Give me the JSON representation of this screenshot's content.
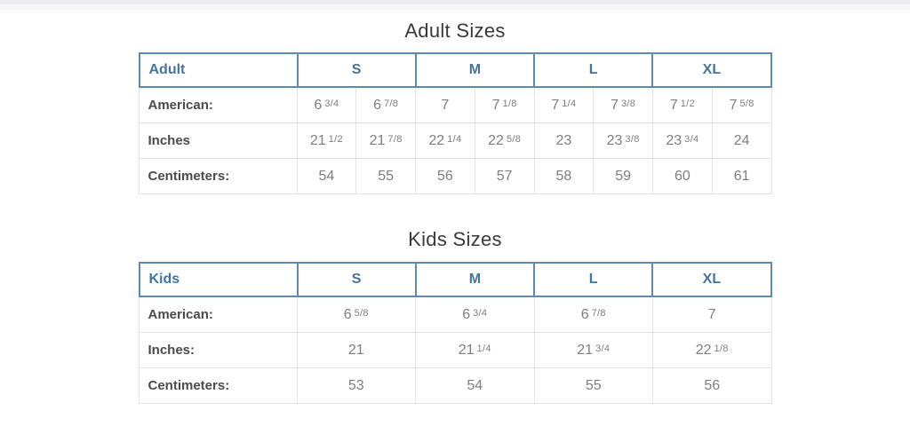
{
  "adult": {
    "title": "Adult Sizes",
    "header": {
      "label": "Adult",
      "cols": [
        "S",
        "M",
        "L",
        "XL"
      ]
    },
    "rows": [
      {
        "label": "American:",
        "cells": [
          {
            "n": "6",
            "f": "3/4"
          },
          {
            "n": "6",
            "f": "7/8"
          },
          {
            "n": "7",
            "f": ""
          },
          {
            "n": "7",
            "f": "1/8"
          },
          {
            "n": "7",
            "f": "1/4"
          },
          {
            "n": "7",
            "f": "3/8"
          },
          {
            "n": "7",
            "f": "1/2"
          },
          {
            "n": "7",
            "f": "5/8"
          }
        ]
      },
      {
        "label": "Inches",
        "cells": [
          {
            "n": "21",
            "f": "1/2"
          },
          {
            "n": "21",
            "f": "7/8"
          },
          {
            "n": "22",
            "f": "1/4"
          },
          {
            "n": "22",
            "f": "5/8"
          },
          {
            "n": "23",
            "f": ""
          },
          {
            "n": "23",
            "f": "3/8"
          },
          {
            "n": "23",
            "f": "3/4"
          },
          {
            "n": "24",
            "f": ""
          }
        ]
      },
      {
        "label": "Centimeters:",
        "cells": [
          {
            "n": "54",
            "f": ""
          },
          {
            "n": "55",
            "f": ""
          },
          {
            "n": "56",
            "f": ""
          },
          {
            "n": "57",
            "f": ""
          },
          {
            "n": "58",
            "f": ""
          },
          {
            "n": "59",
            "f": ""
          },
          {
            "n": "60",
            "f": ""
          },
          {
            "n": "61",
            "f": ""
          }
        ]
      }
    ]
  },
  "kids": {
    "title": "Kids Sizes",
    "header": {
      "label": "Kids",
      "cols": [
        "S",
        "M",
        "L",
        "XL"
      ]
    },
    "rows": [
      {
        "label": "American:",
        "cells": [
          {
            "n": "6",
            "f": "5/8"
          },
          {
            "n": "6",
            "f": "3/4"
          },
          {
            "n": "6",
            "f": "7/8"
          },
          {
            "n": "7",
            "f": ""
          }
        ]
      },
      {
        "label": "Inches:",
        "cells": [
          {
            "n": "21",
            "f": ""
          },
          {
            "n": "21",
            "f": "1/4"
          },
          {
            "n": "21",
            "f": "3/4"
          },
          {
            "n": "22",
            "f": "1/8"
          }
        ]
      },
      {
        "label": "Centimeters:",
        "cells": [
          {
            "n": "53",
            "f": ""
          },
          {
            "n": "54",
            "f": ""
          },
          {
            "n": "55",
            "f": ""
          },
          {
            "n": "56",
            "f": ""
          }
        ]
      }
    ]
  },
  "colors": {
    "accent_blue_text": "#44749f",
    "accent_blue_border": "#5d89b3",
    "row_border": "#e3e3e6",
    "data_text": "#7e7e80",
    "label_text": "#4b4b4d"
  }
}
